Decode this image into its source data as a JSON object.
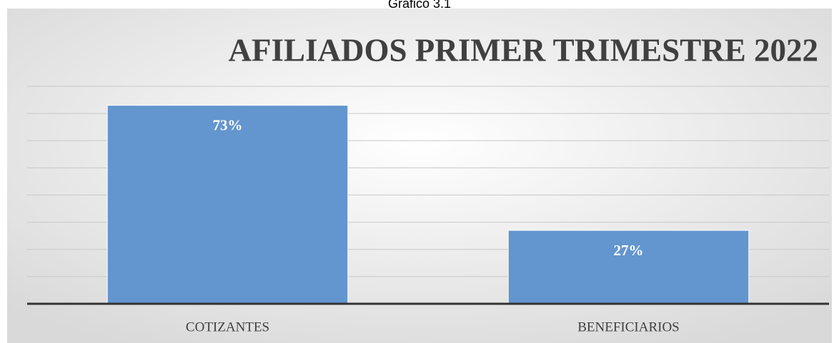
{
  "caption": "Gráfico 3.1",
  "chart_data": {
    "type": "bar",
    "title": "AFILIADOS PRIMER TRIMESTRE 2022",
    "categories": [
      "COTIZANTES",
      "BENEFICIARIOS"
    ],
    "values": [
      73,
      27
    ],
    "value_labels": [
      "73%",
      "27%"
    ],
    "color": "#6395ce",
    "ylim": [
      0,
      80
    ],
    "yticks": [
      0,
      10,
      20,
      30,
      40,
      50,
      60,
      70,
      80
    ],
    "grid": true
  }
}
